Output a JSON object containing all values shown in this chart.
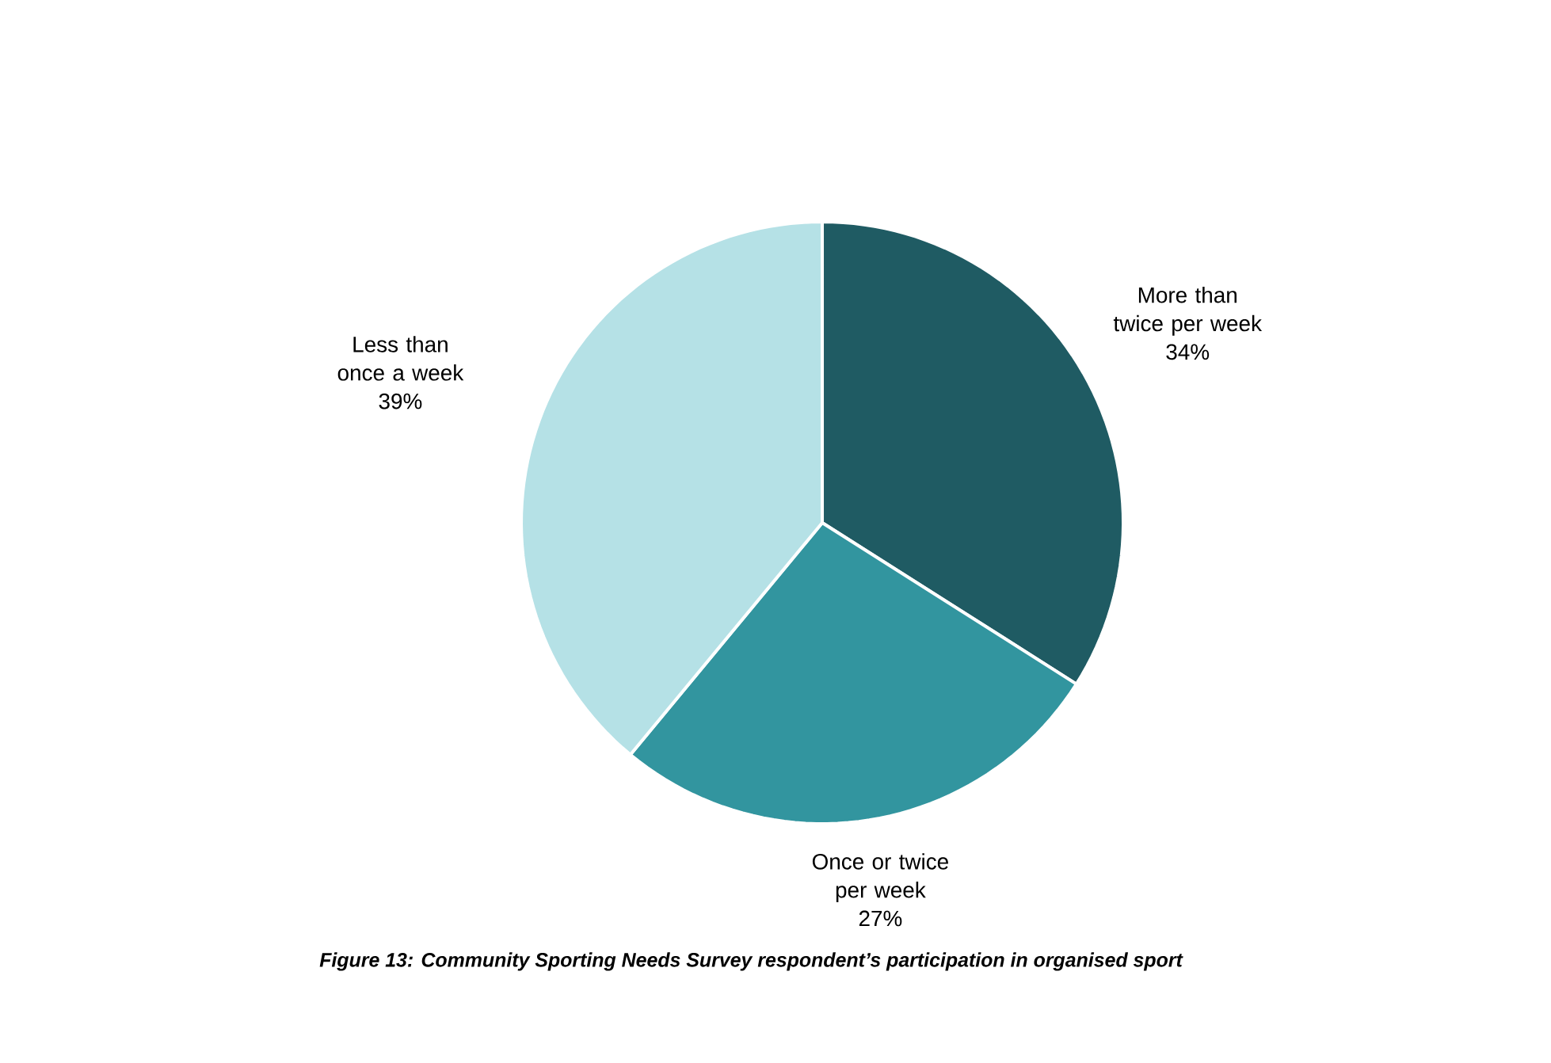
{
  "chart_data": {
    "type": "pie",
    "categories": [
      "More than twice per week",
      "Once or twice per week",
      "Less than once a week"
    ],
    "values": [
      34,
      27,
      39
    ],
    "value_labels": [
      "34%",
      "27%",
      "39%"
    ],
    "colors": [
      "#1f5b63",
      "#32959f",
      "#b5e1e6"
    ],
    "annotations": [
      "Figure 13: Community Sporting Needs Survey respondent’s participation in organised sport"
    ]
  }
}
